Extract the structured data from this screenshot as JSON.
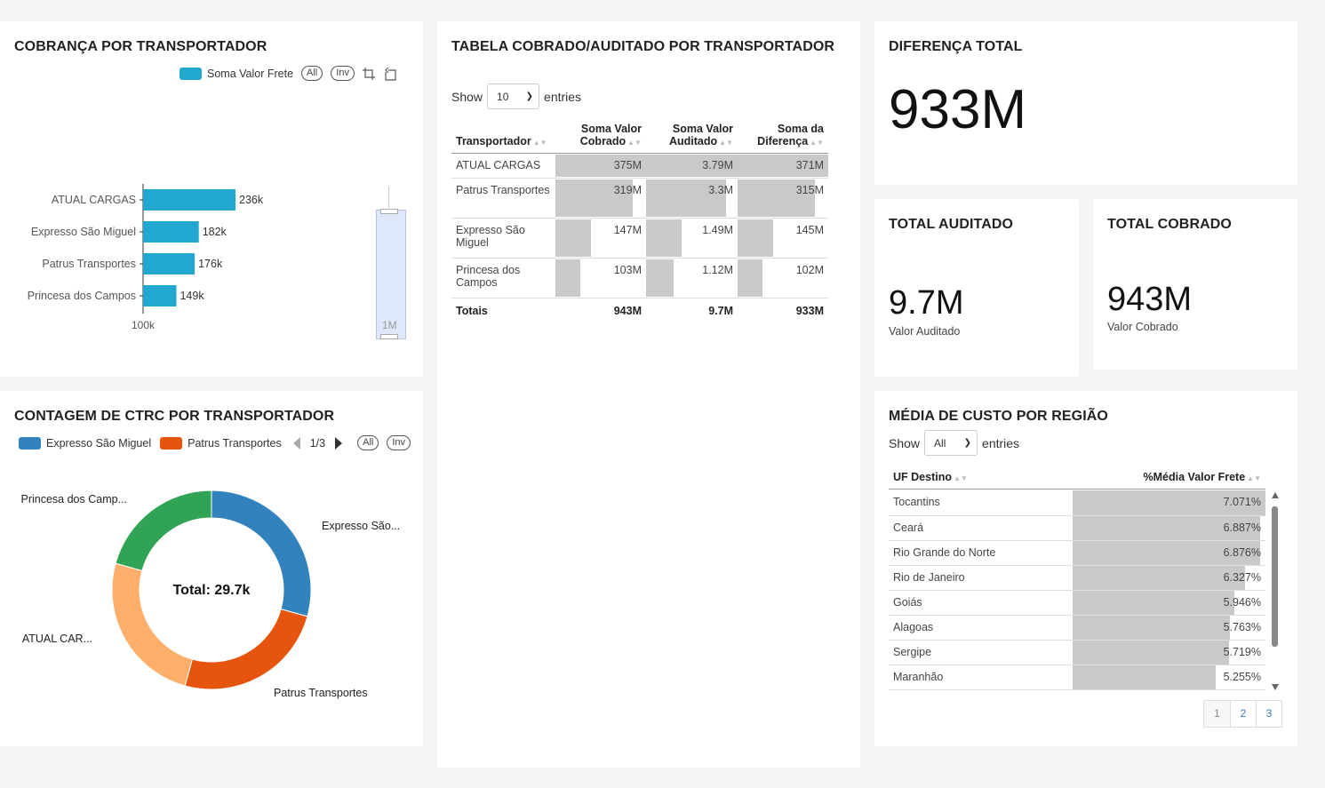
{
  "cobranca": {
    "title": "COBRANÇA POR TRANSPORTADOR",
    "legend_label": "Soma Valor Frete",
    "legend_color": "#22a7cf",
    "btn_all": "All",
    "btn_inv": "Inv",
    "x_tick": "100k",
    "zoom_label": "1M"
  },
  "chart_data": [
    {
      "type": "bar",
      "orientation": "horizontal",
      "categories": [
        "ATUAL CARGAS",
        "Expresso São Miguel",
        "Patrus Transportes",
        "Princesa dos Campos"
      ],
      "series": [
        {
          "name": "Soma Valor Frete",
          "values": [
            236000,
            182000,
            176000,
            149000
          ]
        }
      ],
      "data_labels": [
        "236k",
        "182k",
        "176k",
        "149k"
      ],
      "xlim": [
        100000,
        236000
      ],
      "x_ticks": [
        "100k"
      ]
    },
    {
      "type": "pie",
      "categories": [
        "Expresso São Miguel",
        "Patrus Transportes",
        "ATUAL CARGAS",
        "Princesa dos Campos"
      ],
      "values": [
        0.293,
        0.25,
        0.25,
        0.207
      ],
      "slice_labels": [
        "Expresso São...",
        "Patrus Transportes",
        "ATUAL CAR...",
        "Princesa dos Camp..."
      ],
      "colors": [
        "#3182bd",
        "#e6550d",
        "#fdae6b",
        "#31a354"
      ],
      "center_label": "Total: 29.7k"
    }
  ],
  "tabela": {
    "title": "TABELA COBRADO/AUDITADO POR TRANSPORTADOR",
    "show": "Show",
    "entries": "entries",
    "page_size": "10",
    "headers": [
      "Transportador",
      "Soma Valor Cobrado",
      "Soma Valor Auditado",
      "Soma da Diferença"
    ],
    "rows": [
      {
        "name": "ATUAL CARGAS",
        "cobrado": "375M",
        "auditado": "3.79M",
        "diferenca": "371M",
        "f": [
          1.0,
          1.0,
          1.0
        ]
      },
      {
        "name": "Patrus Transportes",
        "cobrado": "319M",
        "auditado": "3.3M",
        "diferenca": "315M",
        "f": [
          0.85,
          0.87,
          0.85
        ]
      },
      {
        "name": "Expresso São Miguel",
        "cobrado": "147M",
        "auditado": "1.49M",
        "diferenca": "145M",
        "f": [
          0.39,
          0.39,
          0.39
        ]
      },
      {
        "name": "Princesa dos Campos",
        "cobrado": "103M",
        "auditado": "1.12M",
        "diferenca": "102M",
        "f": [
          0.27,
          0.3,
          0.27
        ]
      }
    ],
    "totals": {
      "label": "Totais",
      "cobrado": "943M",
      "auditado": "9.7M",
      "diferenca": "933M"
    }
  },
  "diferenca": {
    "title": "DIFERENÇA TOTAL",
    "value": "933M"
  },
  "auditado": {
    "title": "TOTAL AUDITADO",
    "value": "9.7M",
    "sub": "Valor Auditado"
  },
  "cobrado": {
    "title": "TOTAL COBRADO",
    "value": "943M",
    "sub": "Valor Cobrado"
  },
  "contagem": {
    "title": "CONTAGEM DE CTRC POR TRANSPORTADOR",
    "legend": [
      {
        "label": "Expresso São Miguel",
        "color": "#3182bd"
      },
      {
        "label": "Patrus Transportes",
        "color": "#e6550d"
      }
    ],
    "page": "1/3",
    "btn_all": "All",
    "btn_inv": "Inv"
  },
  "regiao": {
    "title": "MÉDIA DE CUSTO POR REGIÃO",
    "show": "Show",
    "entries": "entries",
    "page_size": "All",
    "headers": [
      "UF Destino",
      "%Média Valor Frete"
    ],
    "rows": [
      {
        "uf": "Tocantins",
        "pct": "7.071%",
        "v": 7.071
      },
      {
        "uf": "Ceará",
        "pct": "6.887%",
        "v": 6.887
      },
      {
        "uf": "Rio Grande do Norte",
        "pct": "6.876%",
        "v": 6.876
      },
      {
        "uf": "Rio de Janeiro",
        "pct": "6.327%",
        "v": 6.327
      },
      {
        "uf": "Goiás",
        "pct": "5.946%",
        "v": 5.946
      },
      {
        "uf": "Alagoas",
        "pct": "5.763%",
        "v": 5.763
      },
      {
        "uf": "Sergipe",
        "pct": "5.719%",
        "v": 5.719
      },
      {
        "uf": "Maranhão",
        "pct": "5.255%",
        "v": 5.255
      }
    ],
    "pages": [
      "1",
      "2",
      "3"
    ]
  }
}
